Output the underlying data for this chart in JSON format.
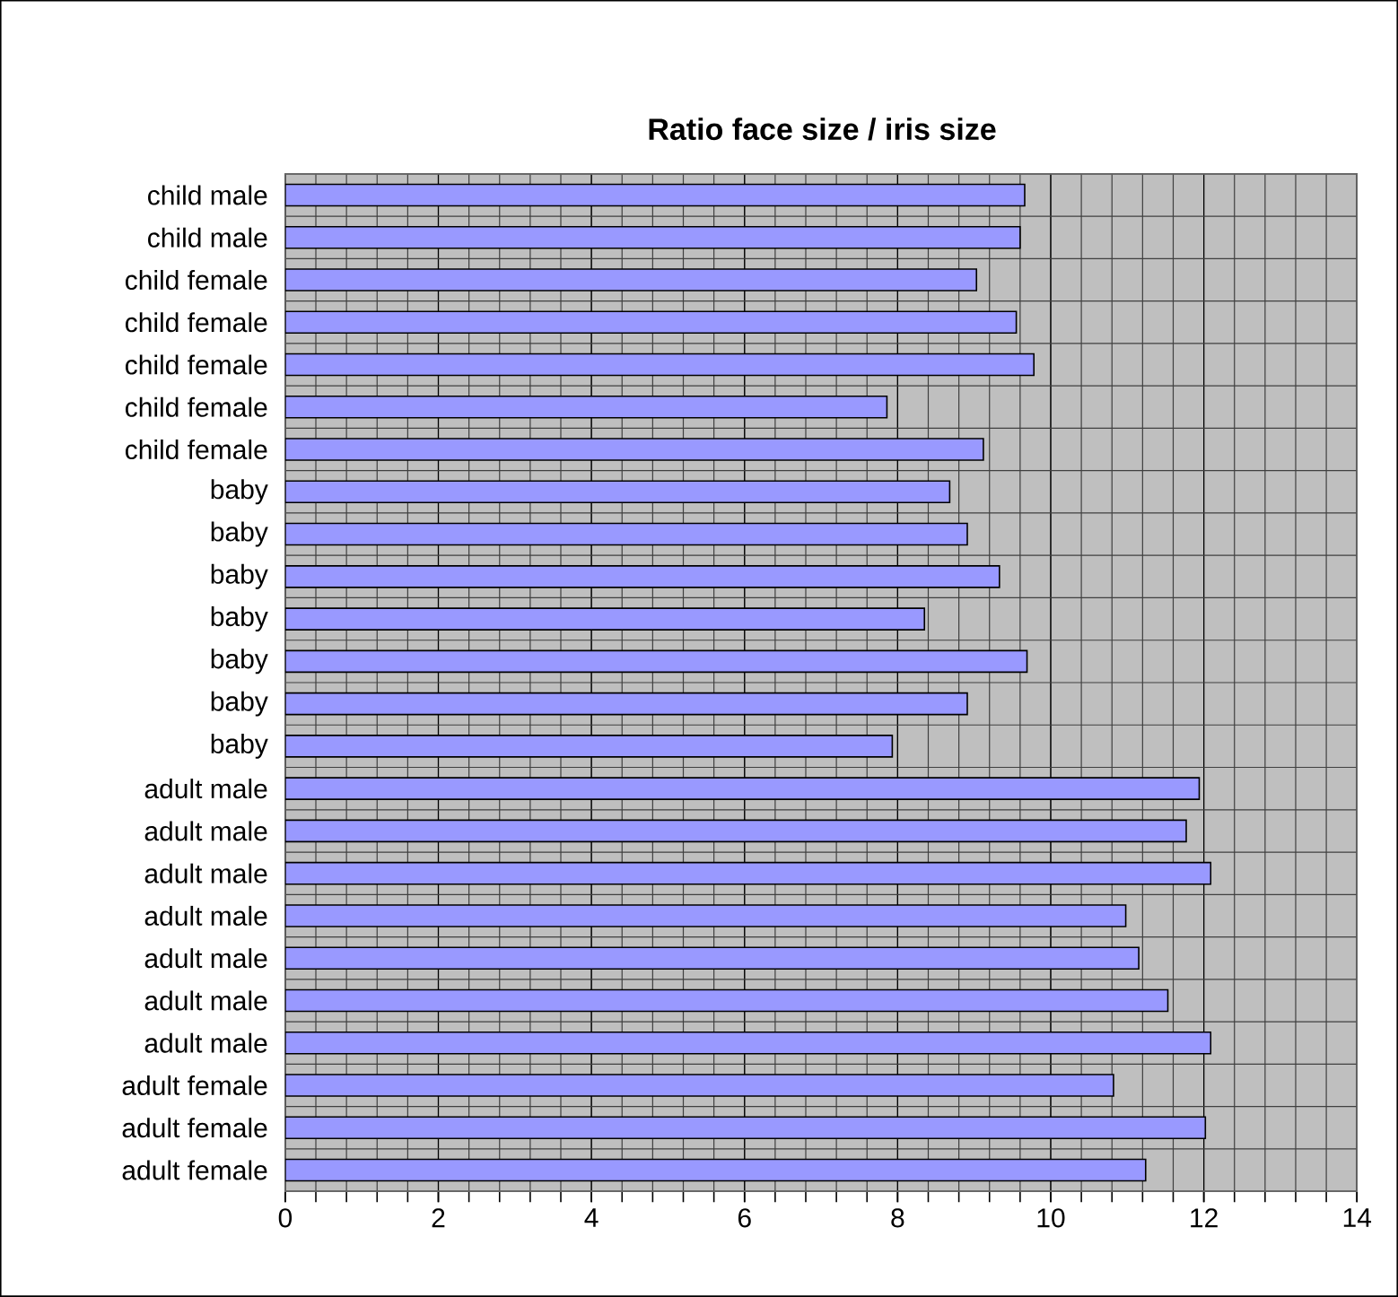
{
  "chart_data": {
    "type": "bar",
    "orientation": "horizontal",
    "title": "Ratio face size / iris size",
    "categories": [
      "child male",
      "child male",
      "child female",
      "child female",
      "child female",
      "child female",
      "child female",
      "baby",
      "baby",
      "baby",
      "baby",
      "baby",
      "baby",
      "baby",
      "adult male",
      "adult male",
      "adult male",
      "adult male",
      "adult male",
      "adult male",
      "adult male",
      "adult female",
      "adult female",
      "adult female"
    ],
    "values": [
      9.66,
      9.6,
      9.03,
      9.55,
      9.78,
      7.86,
      9.12,
      8.68,
      8.91,
      9.33,
      8.35,
      9.69,
      8.91,
      7.93,
      11.94,
      11.77,
      12.09,
      10.98,
      11.15,
      11.53,
      12.09,
      10.82,
      12.02,
      11.24
    ],
    "color": "#9999ff",
    "xlim": [
      0,
      14
    ],
    "xticks": [
      0,
      2,
      4,
      6,
      8,
      10,
      12,
      14
    ],
    "grid": true
  }
}
